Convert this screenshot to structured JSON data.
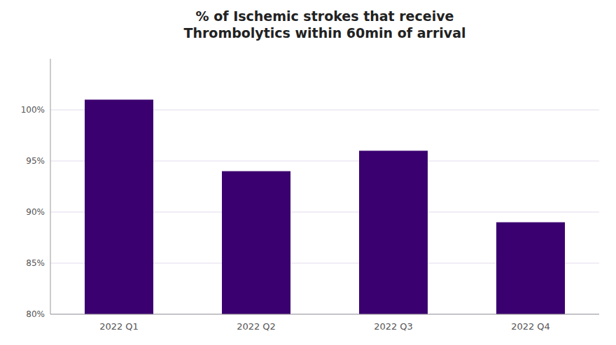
{
  "chart_data": {
    "type": "bar",
    "title": "% of Ischemic strokes that receive\nThrombolytics within 60min of arrival",
    "categories": [
      "2022 Q1",
      "2022 Q2",
      "2022 Q3",
      "2022 Q4"
    ],
    "values": [
      101.0,
      94.0,
      96.0,
      89.0
    ],
    "color": "#3a006f",
    "ylim": [
      80,
      105
    ],
    "yticks": [
      {
        "value": 80,
        "label": "80%"
      },
      {
        "value": 85,
        "label": "85%"
      },
      {
        "value": 90,
        "label": "90%"
      },
      {
        "value": 95,
        "label": "95%"
      },
      {
        "value": 100,
        "label": "100%"
      }
    ],
    "grid": true
  }
}
